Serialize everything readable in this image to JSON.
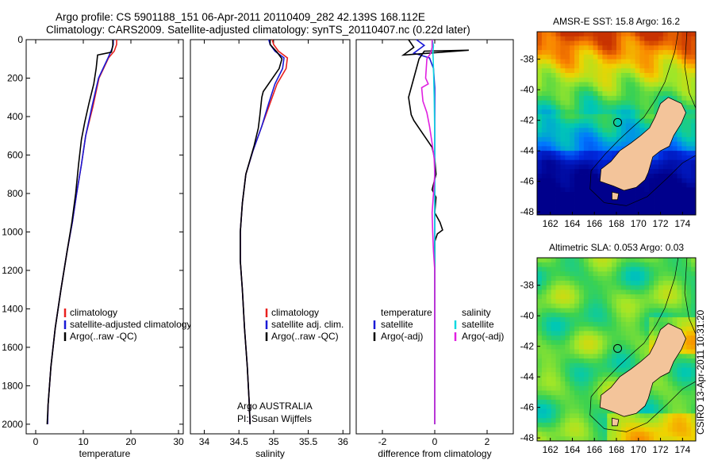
{
  "header": {
    "line1": "Argo profile: CS 5901188_151 06-Apr-2011 20110409_282 42.139S 168.112E",
    "line2": "Climatology: CARS2009. Satellite-adjusted climatology: synTS_20110407.nc (0.22d later)"
  },
  "colors": {
    "climatology": "#e8201e",
    "satellite": "#1a1ad6",
    "argo": "#000000",
    "sat_sal": "#10d8e0",
    "argo_sal_adj": "#e020e0",
    "land": "#f3c49a"
  },
  "footer": {
    "credit": "CSIRO 13-Apr-2011 10:31:20",
    "org": "Argo AUSTRALIA",
    "pi": "PI: Susan Wijffels"
  },
  "maps": [
    {
      "title": "AMSR-E SST: 15.8 Argo: 16.2",
      "type": "sst",
      "xticks": [
        "162",
        "164",
        "166",
        "168",
        "170",
        "172",
        "174"
      ],
      "yticks": [
        "-38",
        "-40",
        "-42",
        "-44",
        "-46",
        "-48"
      ]
    },
    {
      "title": "Altimetric SLA: 0.053 Argo: 0.03",
      "type": "sla",
      "xticks": [
        "162",
        "164",
        "166",
        "168",
        "170",
        "172",
        "174"
      ],
      "yticks": [
        "-38",
        "-40",
        "-42",
        "-44",
        "-46",
        "-48"
      ]
    }
  ],
  "chart_data": [
    {
      "type": "line",
      "xlabel": "temperature",
      "ylabel": "",
      "xlim": [
        -2,
        31
      ],
      "ylim": [
        2050,
        0
      ],
      "xticks": [
        0,
        10,
        20,
        30
      ],
      "yticks": [
        0,
        200,
        400,
        600,
        800,
        1000,
        1200,
        1400,
        1600,
        1800,
        2000
      ],
      "legend": [
        "climatology",
        "satellite-adjusted climatology",
        "Argo(..raw -QC)"
      ],
      "series": [
        {
          "name": "climatology",
          "color": "#e8201e",
          "points": [
            [
              17.0,
              0
            ],
            [
              17.0,
              25
            ],
            [
              16.5,
              60
            ],
            [
              15.3,
              95
            ],
            [
              13.3,
              200
            ],
            [
              12.0,
              350
            ],
            [
              10.5,
              500
            ],
            [
              9.6,
              650
            ],
            [
              8.6,
              800
            ],
            [
              7.7,
              950
            ],
            [
              6.6,
              1100
            ],
            [
              5.3,
              1300
            ],
            [
              4.1,
              1500
            ],
            [
              3.2,
              1700
            ],
            [
              2.6,
              1900
            ],
            [
              2.5,
              2000
            ]
          ]
        },
        {
          "name": "satellite-adjusted climatology",
          "color": "#1a1ad6",
          "points": [
            [
              16.3,
              0
            ],
            [
              16.3,
              25
            ],
            [
              16.0,
              50
            ],
            [
              15.2,
              95
            ],
            [
              13.2,
              200
            ],
            [
              11.8,
              350
            ],
            [
              10.5,
              500
            ],
            [
              9.6,
              650
            ],
            [
              8.6,
              800
            ],
            [
              7.7,
              950
            ],
            [
              6.6,
              1100
            ],
            [
              5.3,
              1300
            ],
            [
              4.1,
              1500
            ],
            [
              3.2,
              1700
            ],
            [
              2.6,
              1900
            ],
            [
              2.5,
              2000
            ]
          ]
        },
        {
          "name": "Argo(..raw -QC)",
          "color": "#000000",
          "points": [
            [
              16.2,
              0
            ],
            [
              16.2,
              30
            ],
            [
              15.9,
              65
            ],
            [
              13.0,
              80
            ],
            [
              12.7,
              150
            ],
            [
              12.2,
              230
            ],
            [
              11.2,
              330
            ],
            [
              10.3,
              430
            ],
            [
              9.6,
              520
            ],
            [
              9.0,
              650
            ],
            [
              8.4,
              800
            ],
            [
              7.6,
              950
            ],
            [
              6.6,
              1100
            ],
            [
              5.3,
              1300
            ],
            [
              4.1,
              1500
            ],
            [
              3.2,
              1700
            ],
            [
              2.6,
              1900
            ],
            [
              2.4,
              2000
            ]
          ]
        }
      ]
    },
    {
      "type": "line",
      "xlabel": "salinity",
      "ylabel": "",
      "xlim": [
        33.8,
        36.1
      ],
      "ylim": [
        2050,
        0
      ],
      "xticks": [
        34,
        34.5,
        35,
        35.5,
        36
      ],
      "yticks": [],
      "legend": [
        "climatology",
        "satellite adj. clim.",
        "Argo(..raw -QC)"
      ],
      "series": [
        {
          "name": "climatology",
          "color": "#e8201e",
          "points": [
            [
              34.98,
              0
            ],
            [
              35.0,
              25
            ],
            [
              35.07,
              60
            ],
            [
              35.2,
              95
            ],
            [
              35.18,
              150
            ],
            [
              35.05,
              230
            ],
            [
              34.95,
              330
            ],
            [
              34.83,
              450
            ],
            [
              34.7,
              580
            ],
            [
              34.6,
              700
            ],
            [
              34.55,
              850
            ],
            [
              34.52,
              1000
            ],
            [
              34.52,
              1150
            ],
            [
              34.55,
              1300
            ],
            [
              34.58,
              1500
            ],
            [
              34.62,
              1700
            ],
            [
              34.65,
              1900
            ],
            [
              34.66,
              2000
            ]
          ]
        },
        {
          "name": "satellite adj. clim.",
          "color": "#1a1ad6",
          "points": [
            [
              34.93,
              0
            ],
            [
              34.95,
              25
            ],
            [
              35.02,
              60
            ],
            [
              35.15,
              95
            ],
            [
              35.13,
              150
            ],
            [
              35.02,
              230
            ],
            [
              34.93,
              330
            ],
            [
              34.83,
              450
            ],
            [
              34.7,
              580
            ],
            [
              34.6,
              700
            ],
            [
              34.55,
              850
            ],
            [
              34.52,
              1000
            ],
            [
              34.52,
              1150
            ],
            [
              34.55,
              1300
            ],
            [
              34.58,
              1500
            ],
            [
              34.62,
              1700
            ],
            [
              34.65,
              1900
            ],
            [
              34.66,
              2000
            ]
          ]
        },
        {
          "name": "Argo(..raw -QC)",
          "color": "#000000",
          "points": [
            [
              34.95,
              0
            ],
            [
              34.95,
              25
            ],
            [
              35.05,
              65
            ],
            [
              35.12,
              100
            ],
            [
              35.08,
              150
            ],
            [
              34.85,
              270
            ],
            [
              34.83,
              300
            ],
            [
              34.8,
              400
            ],
            [
              34.78,
              460
            ],
            [
              34.72,
              550
            ],
            [
              34.6,
              700
            ],
            [
              34.55,
              850
            ],
            [
              34.52,
              1000
            ],
            [
              34.52,
              1150
            ],
            [
              34.55,
              1300
            ],
            [
              34.58,
              1500
            ],
            [
              34.62,
              1700
            ],
            [
              34.65,
              1900
            ],
            [
              34.66,
              2000
            ]
          ]
        }
      ]
    },
    {
      "type": "line",
      "xlabel": "difference from climatology",
      "ylabel": "",
      "xlim": [
        -3,
        3
      ],
      "ylim": [
        2050,
        0
      ],
      "xticks": [
        -2,
        0,
        2
      ],
      "yticks": [],
      "legend_left": {
        "title": "temperature",
        "items": [
          "satellite",
          "Argo(-adj)"
        ]
      },
      "legend_right": {
        "title": "salinity",
        "items": [
          "satellite",
          "Argo(-adj)"
        ]
      },
      "series": [
        {
          "name": "satellite",
          "group": "temperature",
          "color": "#1a1ad6",
          "points": [
            [
              -0.7,
              0
            ],
            [
              -0.4,
              30
            ],
            [
              -0.8,
              70
            ],
            [
              -0.2,
              95
            ],
            [
              -0.05,
              150
            ],
            [
              0,
              250
            ],
            [
              0,
              2000
            ]
          ]
        },
        {
          "name": "Argo(-adj)",
          "group": "temperature",
          "color": "#000000",
          "points": [
            [
              -1.0,
              0
            ],
            [
              -0.8,
              40
            ],
            [
              -1.2,
              80
            ],
            [
              1.3,
              55
            ],
            [
              -0.4,
              60
            ],
            [
              -0.6,
              100
            ],
            [
              -0.8,
              200
            ],
            [
              -1.0,
              300
            ],
            [
              -0.9,
              390
            ],
            [
              -0.8,
              420
            ],
            [
              -0.5,
              480
            ],
            [
              -0.3,
              520
            ],
            [
              -0.1,
              560
            ],
            [
              0,
              620
            ],
            [
              0.05,
              700
            ],
            [
              -0.1,
              780
            ],
            [
              0.05,
              820
            ],
            [
              0,
              900
            ],
            [
              0.2,
              950
            ],
            [
              0.3,
              990
            ],
            [
              0.1,
              1010
            ],
            [
              0,
              1050
            ],
            [
              0,
              1200
            ],
            [
              0,
              2000
            ]
          ]
        },
        {
          "name": "satellite",
          "group": "salinity",
          "color": "#10d8e0",
          "points": [
            [
              -0.1,
              0
            ],
            [
              -0.05,
              30
            ],
            [
              -0.07,
              70
            ],
            [
              -0.06,
              95
            ],
            [
              -0.05,
              150
            ],
            [
              -0.02,
              300
            ],
            [
              0,
              500
            ],
            [
              0,
              2000
            ]
          ]
        },
        {
          "name": "Argo(-adj)",
          "group": "salinity",
          "color": "#e020e0",
          "points": [
            [
              -0.1,
              0
            ],
            [
              -0.1,
              40
            ],
            [
              -0.15,
              70
            ],
            [
              -0.3,
              100
            ],
            [
              -0.35,
              200
            ],
            [
              -0.25,
              230
            ],
            [
              -0.5,
              250
            ],
            [
              -0.45,
              320
            ],
            [
              -0.3,
              380
            ],
            [
              -0.2,
              450
            ],
            [
              -0.1,
              540
            ],
            [
              -0.02,
              620
            ],
            [
              0,
              700
            ],
            [
              -0.05,
              800
            ],
            [
              -0.1,
              900
            ],
            [
              -0.08,
              1000
            ],
            [
              -0.05,
              1100
            ],
            [
              0,
              1200
            ],
            [
              0,
              2000
            ]
          ]
        }
      ]
    }
  ]
}
